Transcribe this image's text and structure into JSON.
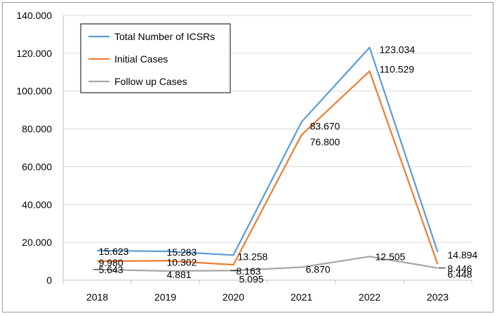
{
  "chart_data": {
    "type": "line",
    "categories": [
      "2018",
      "2019",
      "2020",
      "2021",
      "2022",
      "2023"
    ],
    "ylim": [
      0,
      140000
    ],
    "y_ticks": [
      "0",
      "20.000",
      "40.000",
      "60.000",
      "80.000",
      "100.000",
      "120.000",
      "140.000"
    ],
    "grid": true,
    "legend_position": "top-left",
    "series": [
      {
        "name": "Total Number of ICSRs",
        "color": "#5b9bd5",
        "values": [
          15623,
          15283,
          13258,
          83670,
          123034,
          14894
        ],
        "labels": [
          "15.623",
          "15.283",
          "13.258",
          "83.670",
          "123.034",
          "14.894"
        ]
      },
      {
        "name": "Initial Cases",
        "color": "#ed7d31",
        "values": [
          9980,
          10302,
          8163,
          76800,
          110529,
          8446
        ],
        "labels": [
          "9.980",
          "10.302",
          "8.163",
          "76.800",
          "110.529",
          "8.446"
        ]
      },
      {
        "name": "Follow up Cases",
        "color": "#a5a5a5",
        "values": [
          5643,
          4881,
          5095,
          6870,
          12505,
          6448
        ],
        "labels": [
          "5.643",
          "4.881",
          "5.095",
          "6.870",
          "12.505",
          "6.448"
        ]
      }
    ]
  }
}
